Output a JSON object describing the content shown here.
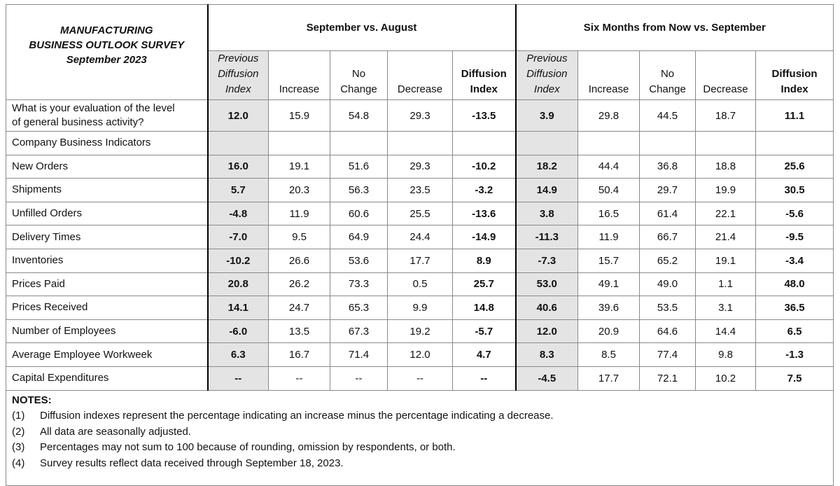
{
  "header": {
    "title": [
      "MANUFACTURING",
      "BUSINESS OUTLOOK SURVEY",
      "September 2023"
    ],
    "groups": [
      {
        "title": "September vs. August",
        "columns": [
          [
            "Previous",
            "Diffusion",
            "Index"
          ],
          [
            "Increase"
          ],
          [
            "No",
            "Change"
          ],
          [
            "Decrease"
          ],
          [
            "Diffusion",
            "Index"
          ]
        ]
      },
      {
        "title": "Six Months from Now vs. September",
        "columns": [
          [
            "Previous",
            "Diffusion",
            "Index"
          ],
          [
            "Increase"
          ],
          [
            "No",
            "Change"
          ],
          [
            "Decrease"
          ],
          [
            "Diffusion",
            "Index"
          ]
        ]
      }
    ]
  },
  "rows": [
    {
      "label": [
        "What is your evaluation of the level",
        "of general business activity?"
      ],
      "cells": [
        "12.0",
        "15.9",
        "54.8",
        "29.3",
        "-13.5",
        "3.9",
        "29.8",
        "44.5",
        "18.7",
        "11.1"
      ]
    },
    {
      "label": [
        "Company Business Indicators"
      ]
    },
    {
      "label": [
        "New Orders"
      ],
      "cells": [
        "16.0",
        "19.1",
        "51.6",
        "29.3",
        "-10.2",
        "18.2",
        "44.4",
        "36.8",
        "18.8",
        "25.6"
      ]
    },
    {
      "label": [
        "Shipments"
      ],
      "cells": [
        "5.7",
        "20.3",
        "56.3",
        "23.5",
        "-3.2",
        "14.9",
        "50.4",
        "29.7",
        "19.9",
        "30.5"
      ]
    },
    {
      "label": [
        "Unfilled Orders"
      ],
      "cells": [
        "-4.8",
        "11.9",
        "60.6",
        "25.5",
        "-13.6",
        "3.8",
        "16.5",
        "61.4",
        "22.1",
        "-5.6"
      ]
    },
    {
      "label": [
        "Delivery Times"
      ],
      "cells": [
        "-7.0",
        "9.5",
        "64.9",
        "24.4",
        "-14.9",
        "-11.3",
        "11.9",
        "66.7",
        "21.4",
        "-9.5"
      ]
    },
    {
      "label": [
        "Inventories"
      ],
      "cells": [
        "-10.2",
        "26.6",
        "53.6",
        "17.7",
        "8.9",
        "-7.3",
        "15.7",
        "65.2",
        "19.1",
        "-3.4"
      ]
    },
    {
      "label": [
        "Prices Paid"
      ],
      "cells": [
        "20.8",
        "26.2",
        "73.3",
        "0.5",
        "25.7",
        "53.0",
        "49.1",
        "49.0",
        "1.1",
        "48.0"
      ]
    },
    {
      "label": [
        "Prices Received"
      ],
      "cells": [
        "14.1",
        "24.7",
        "65.3",
        "9.9",
        "14.8",
        "40.6",
        "39.6",
        "53.5",
        "3.1",
        "36.5"
      ]
    },
    {
      "label": [
        "Number of Employees"
      ],
      "cells": [
        "-6.0",
        "13.5",
        "67.3",
        "19.2",
        "-5.7",
        "12.0",
        "20.9",
        "64.6",
        "14.4",
        "6.5"
      ]
    },
    {
      "label": [
        "Average Employee Workweek"
      ],
      "cells": [
        "6.3",
        "16.7",
        "71.4",
        "12.0",
        "4.7",
        "8.3",
        "8.5",
        "77.4",
        "9.8",
        "-1.3"
      ]
    },
    {
      "label": [
        "Capital Expenditures"
      ],
      "cells": [
        "--",
        "--",
        "--",
        "--",
        "--",
        "-4.5",
        "17.7",
        "72.1",
        "10.2",
        "7.5"
      ]
    }
  ],
  "notes": {
    "title": "NOTES:",
    "items": [
      {
        "num": "(1)",
        "text": "Diffusion indexes represent the percentage indicating an increase minus the percentage indicating a decrease."
      },
      {
        "num": "(2)",
        "text": "All data are seasonally adjusted."
      },
      {
        "num": "(3)",
        "text": "Percentages may not sum to 100 because of rounding, omission by respondents, or both."
      },
      {
        "num": "(4)",
        "text": "Survey results reflect data received through September 18, 2023."
      }
    ]
  }
}
